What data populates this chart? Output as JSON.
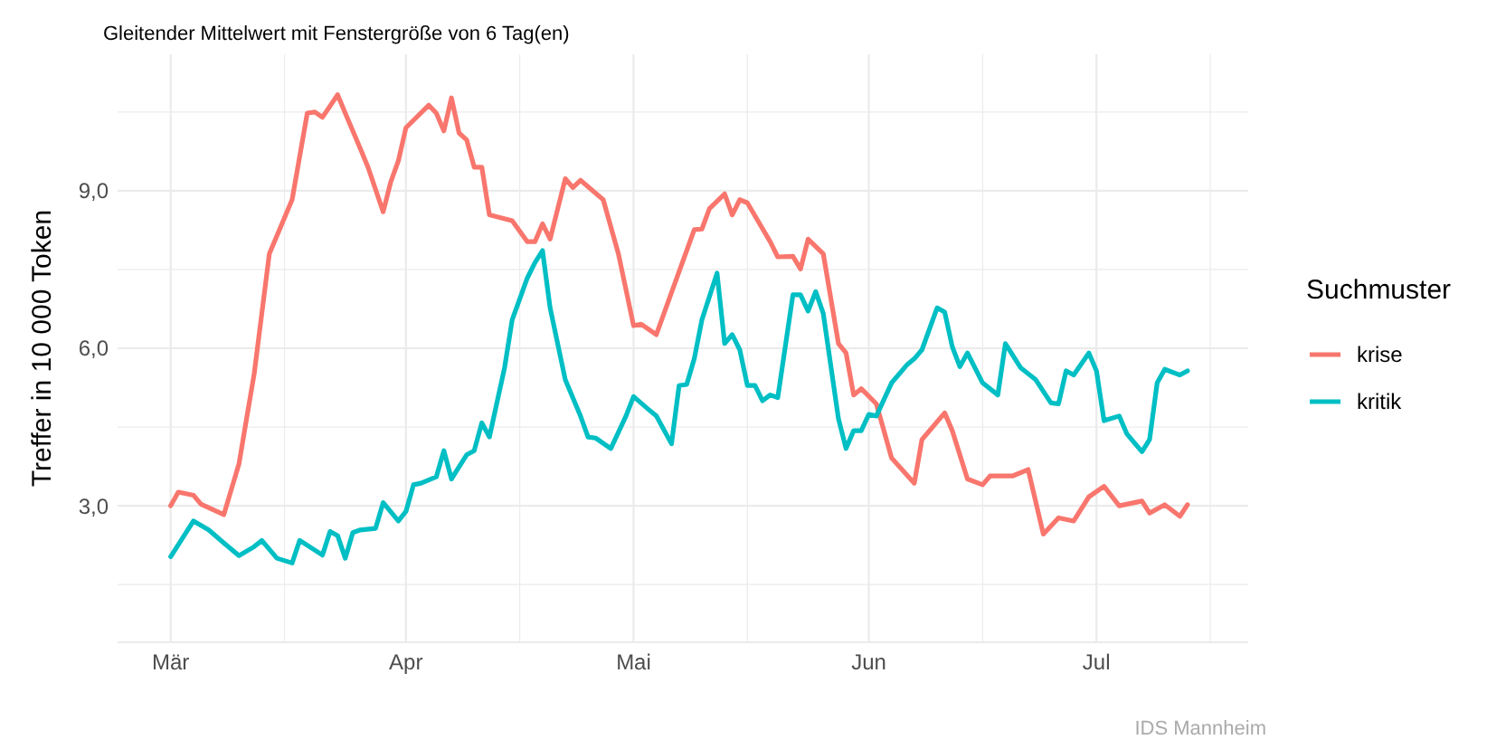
{
  "chart_data": {
    "type": "line",
    "title": "Gleitender Mittelwert mit Fenstergröße von 6 Tag(en)",
    "ylabel": "Treffer in 10 000 Token",
    "legend_title": "Suchmuster",
    "legend": "right",
    "grid": true,
    "line_style": "solid",
    "marker": "none",
    "annotations": [
      "IDS Mannheim"
    ],
    "xlim": [
      "--02-22",
      "--07-21"
    ],
    "xticks": [
      {
        "value": "--03-01",
        "label": "Mär"
      },
      {
        "value": "--03-16",
        "label": null
      },
      {
        "value": "--04-01",
        "label": "Apr"
      },
      {
        "value": "--04-16",
        "label": null
      },
      {
        "value": "--05-01",
        "label": "Mai"
      },
      {
        "value": "--05-16",
        "label": null
      },
      {
        "value": "--06-01",
        "label": "Jun"
      },
      {
        "value": "--06-16",
        "label": null
      },
      {
        "value": "--07-01",
        "label": "Jul"
      },
      {
        "value": "--07-16",
        "label": null
      }
    ],
    "ylim": [
      0.4,
      11.6
    ],
    "yticks": [
      {
        "value": 1.5,
        "label": null
      },
      {
        "value": 3,
        "label": "3,0"
      },
      {
        "value": 4.5,
        "label": null
      },
      {
        "value": 6,
        "label": "6,0"
      },
      {
        "value": 7.5,
        "label": null
      },
      {
        "value": 9,
        "label": "9,0"
      },
      {
        "value": 10.5,
        "label": null
      }
    ],
    "series": [
      {
        "name": "krise",
        "color": "#f8766d",
        "x": [
          "--03-01",
          "--03-02",
          "--03-04",
          "--03-05",
          "--03-08",
          "--03-10",
          "--03-11",
          "--03-12",
          "--03-14",
          "--03-17",
          "--03-19",
          "--03-20",
          "--03-21",
          "--03-23",
          "--03-24",
          "--03-26",
          "--03-27",
          "--03-29",
          "--03-30",
          "--03-31",
          "--04-01",
          "--04-04",
          "--04-05",
          "--04-06",
          "--04-07",
          "--04-08",
          "--04-09",
          "--04-10",
          "--04-11",
          "--04-12",
          "--04-15",
          "--04-17",
          "--04-18",
          "--04-19",
          "--04-20",
          "--04-22",
          "--04-23",
          "--04-24",
          "--04-27",
          "--04-29",
          "--05-01",
          "--05-02",
          "--05-04",
          "--05-06",
          "--05-09",
          "--05-10",
          "--05-11",
          "--05-13",
          "--05-14",
          "--05-15",
          "--05-16",
          "--05-19",
          "--05-20",
          "--05-22",
          "--05-23",
          "--05-24",
          "--05-26",
          "--05-28",
          "--05-29",
          "--05-30",
          "--05-31",
          "--06-02",
          "--06-04",
          "--06-07",
          "--06-08",
          "--06-11",
          "--06-12",
          "--06-14",
          "--06-16",
          "--06-17",
          "--06-20",
          "--06-22",
          "--06-24",
          "--06-26",
          "--06-28",
          "--06-30",
          "--07-02",
          "--07-04",
          "--07-07",
          "--07-08",
          "--07-10",
          "--07-12",
          "--07-13"
        ],
        "values": [
          3.0,
          3.26,
          3.2,
          3.03,
          2.83,
          3.8,
          4.66,
          5.51,
          7.8,
          8.83,
          10.48,
          10.5,
          10.4,
          10.83,
          10.48,
          9.8,
          9.45,
          8.6,
          9.17,
          9.57,
          10.2,
          10.63,
          10.48,
          10.14,
          10.77,
          10.1,
          9.97,
          9.45,
          9.45,
          8.54,
          8.43,
          8.03,
          8.03,
          8.37,
          8.08,
          9.23,
          9.06,
          9.2,
          8.83,
          7.8,
          6.43,
          6.46,
          6.26,
          7.06,
          8.26,
          8.27,
          8.66,
          8.94,
          8.54,
          8.83,
          8.77,
          8.03,
          7.74,
          7.75,
          7.51,
          8.08,
          7.8,
          6.09,
          5.91,
          5.11,
          5.23,
          4.94,
          3.91,
          3.43,
          4.26,
          4.77,
          4.43,
          3.51,
          3.4,
          3.57,
          3.57,
          3.69,
          2.46,
          2.77,
          2.71,
          3.17,
          3.37,
          3.0,
          3.09,
          2.86,
          3.02,
          2.8,
          3.02
        ]
      },
      {
        "name": "kritik",
        "color": "#00bfc4",
        "x": [
          "--03-01",
          "--03-04",
          "--03-06",
          "--03-08",
          "--03-10",
          "--03-12",
          "--03-13",
          "--03-15",
          "--03-17",
          "--03-18",
          "--03-21",
          "--03-22",
          "--03-23",
          "--03-24",
          "--03-25",
          "--03-26",
          "--03-28",
          "--03-29",
          "--03-31",
          "--04-01",
          "--04-02",
          "--04-03",
          "--04-05",
          "--04-06",
          "--04-07",
          "--04-09",
          "--04-10",
          "--04-11",
          "--04-12",
          "--04-14",
          "--04-15",
          "--04-17",
          "--04-18",
          "--04-19",
          "--04-20",
          "--04-22",
          "--04-24",
          "--04-25",
          "--04-26",
          "--04-28",
          "--04-30",
          "--05-01",
          "--05-03",
          "--05-04",
          "--05-06",
          "--05-07",
          "--05-08",
          "--05-09",
          "--05-10",
          "--05-12",
          "--05-13",
          "--05-14",
          "--05-15",
          "--05-16",
          "--05-17",
          "--05-18",
          "--05-19",
          "--05-20",
          "--05-22",
          "--05-23",
          "--05-24",
          "--05-25",
          "--05-26",
          "--05-28",
          "--05-29",
          "--05-30",
          "--05-31",
          "--06-01",
          "--06-02",
          "--06-04",
          "--06-06",
          "--06-07",
          "--06-08",
          "--06-10",
          "--06-11",
          "--06-12",
          "--06-13",
          "--06-14",
          "--06-16",
          "--06-18",
          "--06-19",
          "--06-21",
          "--06-23",
          "--06-25",
          "--06-26",
          "--06-27",
          "--06-28",
          "--06-30",
          "--07-01",
          "--07-02",
          "--07-04",
          "--07-05",
          "--07-07",
          "--07-08",
          "--07-09",
          "--07-10",
          "--07-12",
          "--07-13"
        ],
        "values": [
          2.03,
          2.71,
          2.54,
          2.29,
          2.05,
          2.22,
          2.34,
          2.0,
          1.91,
          2.34,
          2.06,
          2.51,
          2.43,
          2.0,
          2.49,
          2.54,
          2.57,
          3.06,
          2.71,
          2.89,
          3.4,
          3.43,
          3.55,
          4.05,
          3.51,
          3.97,
          4.05,
          4.58,
          4.31,
          5.63,
          6.54,
          7.34,
          7.63,
          7.86,
          6.77,
          5.4,
          4.71,
          4.31,
          4.29,
          4.09,
          4.71,
          5.08,
          4.83,
          4.71,
          4.18,
          5.29,
          5.31,
          5.8,
          6.54,
          7.43,
          6.09,
          6.26,
          5.97,
          5.29,
          5.29,
          5.0,
          5.11,
          5.06,
          7.02,
          7.02,
          6.71,
          7.08,
          6.66,
          4.66,
          4.09,
          4.43,
          4.43,
          4.74,
          4.71,
          5.34,
          5.68,
          5.8,
          5.97,
          6.77,
          6.69,
          6.03,
          5.65,
          5.91,
          5.34,
          5.11,
          6.09,
          5.63,
          5.4,
          4.96,
          4.94,
          5.57,
          5.49,
          5.91,
          5.57,
          4.62,
          4.71,
          4.37,
          4.03,
          4.26,
          5.34,
          5.6,
          5.49,
          5.57
        ]
      }
    ]
  }
}
